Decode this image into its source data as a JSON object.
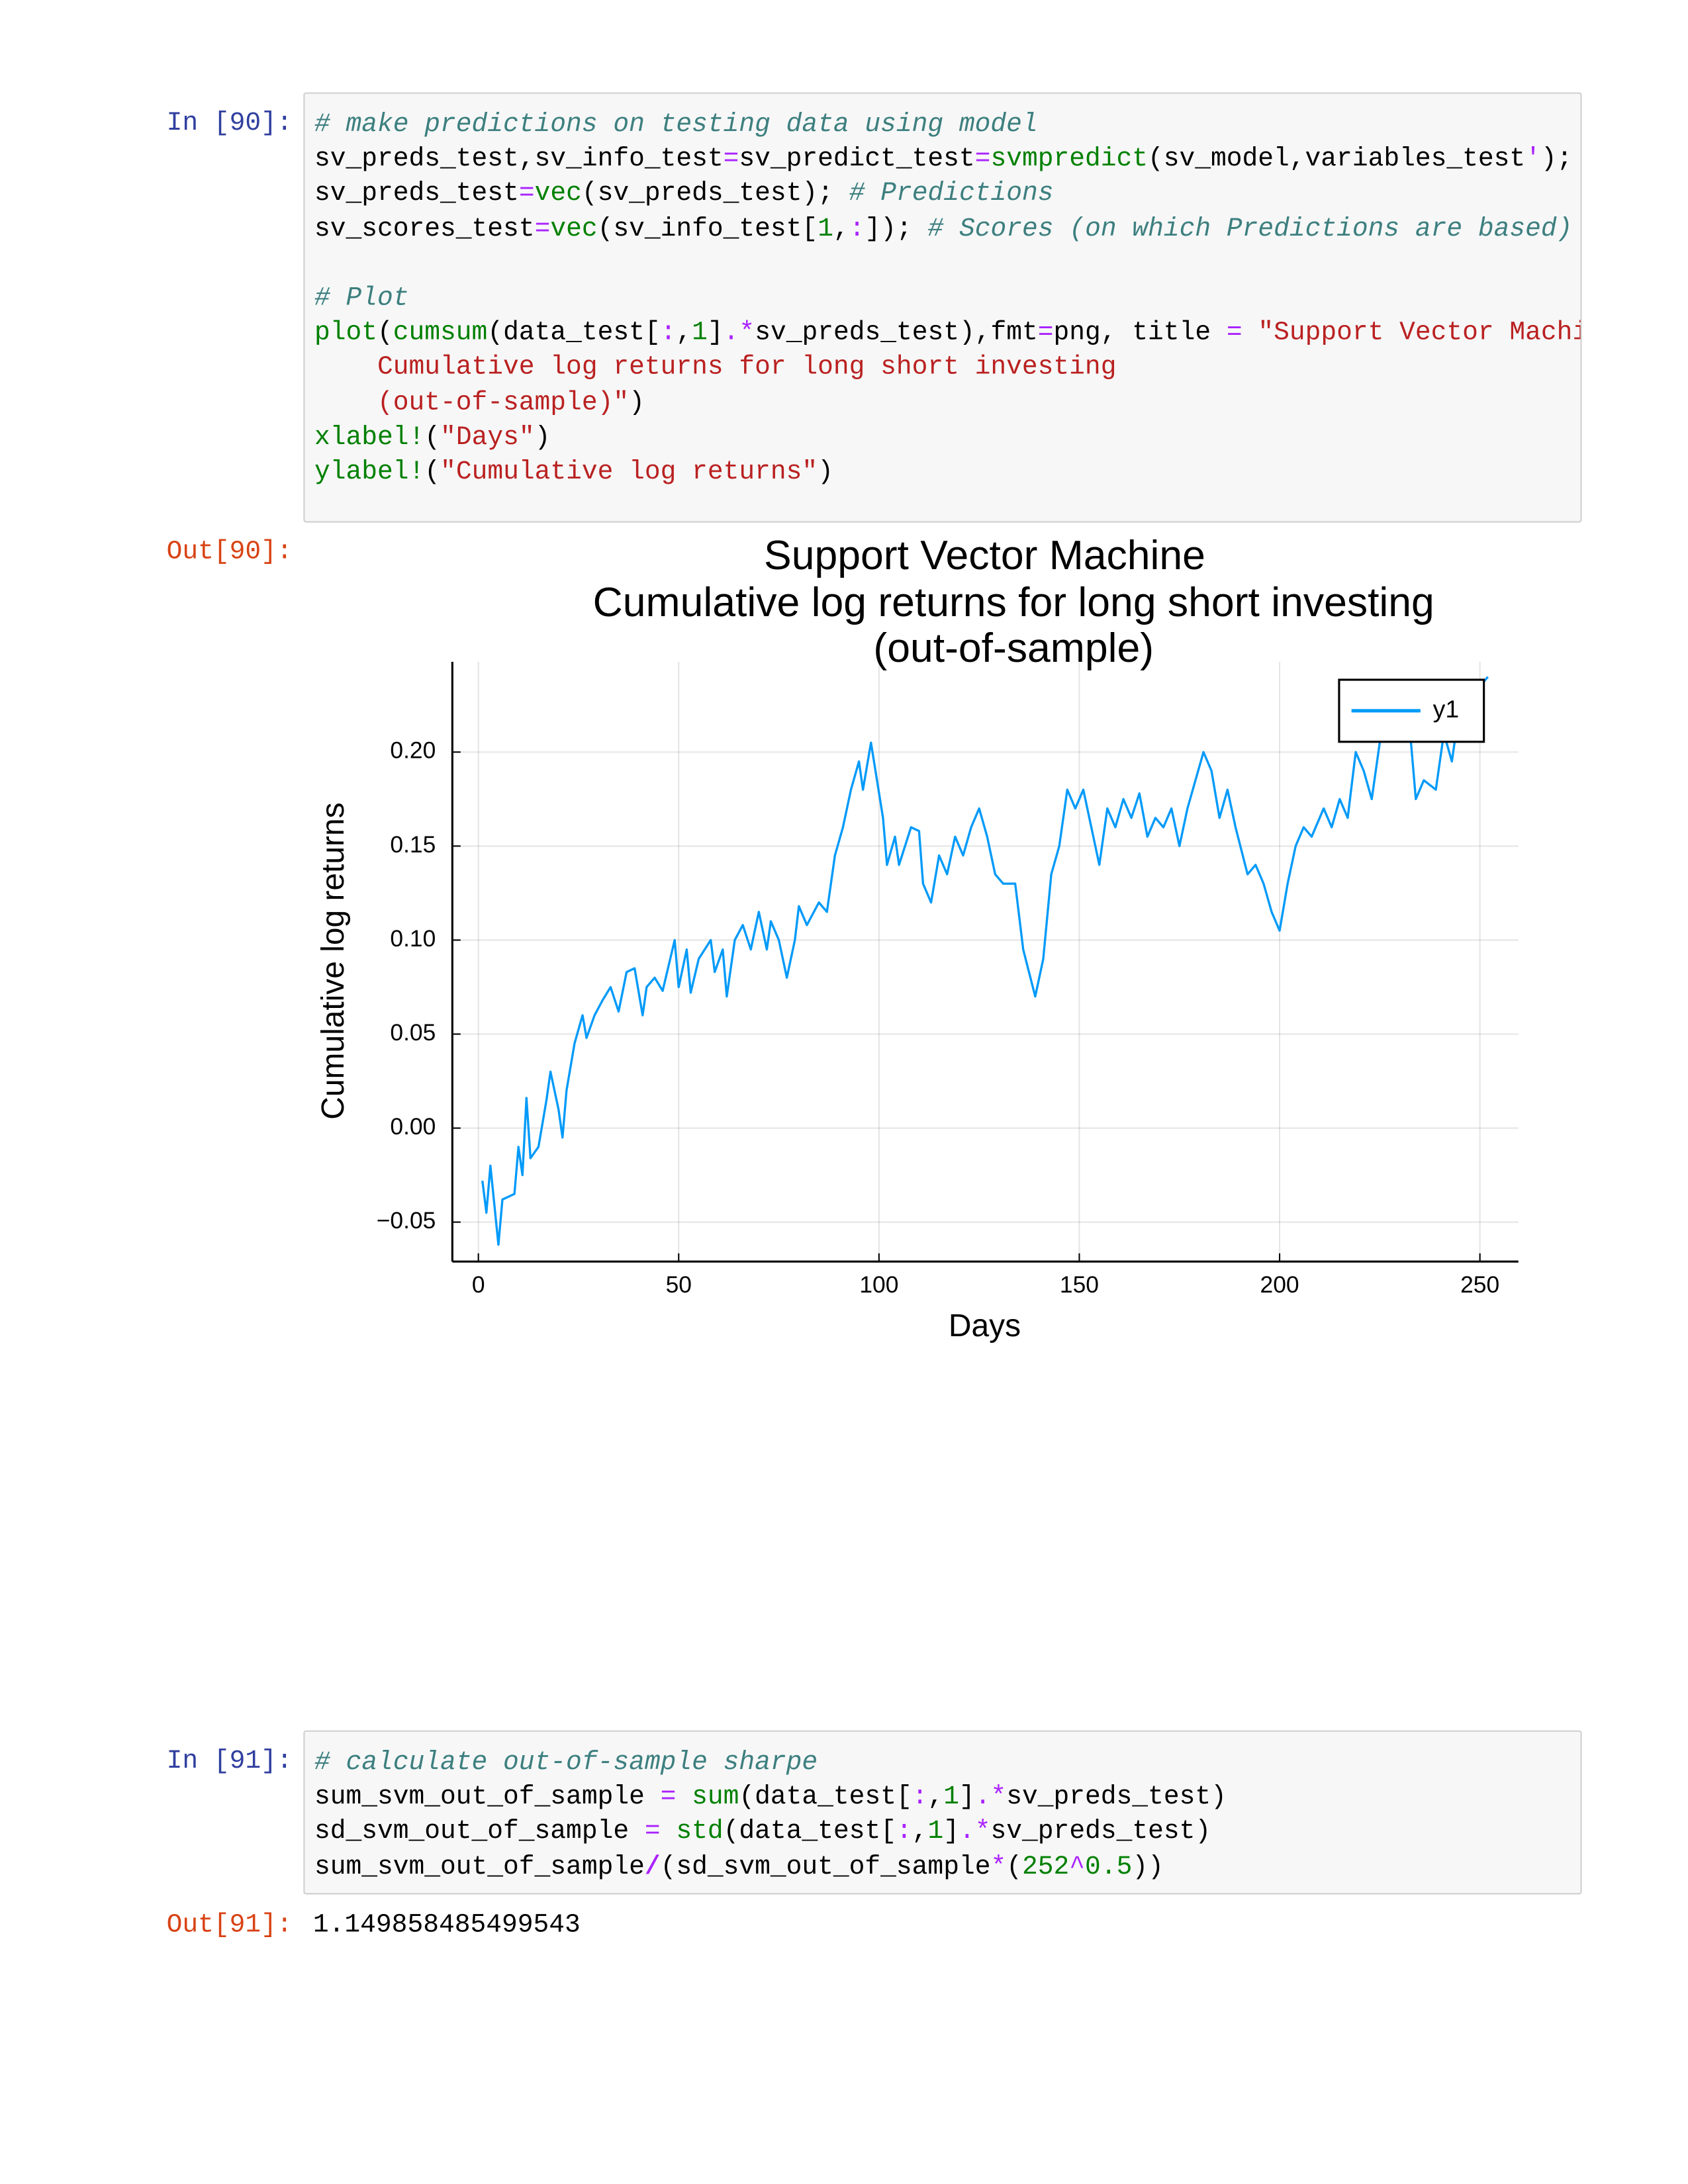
{
  "cells": [
    {
      "input_prompt": "In [90]:",
      "output_prompt": "Out[90]:",
      "code": [
        [
          [
            "# make predictions on testing data using model",
            "#3d7f7f",
            "italic"
          ]
        ],
        [
          [
            "sv_preds_test,sv_info_test",
            "#000000"
          ],
          [
            "=",
            "#aa22ff"
          ],
          [
            "sv_predict_test",
            "#000000"
          ],
          [
            "=",
            "#aa22ff"
          ],
          [
            "svmpredict",
            "#008000"
          ],
          [
            "(sv_model,variables_test",
            "#000000"
          ],
          [
            "'",
            "#aa22ff"
          ],
          [
            ");",
            "#000000"
          ]
        ],
        [
          [
            "sv_preds_test",
            "#000000"
          ],
          [
            "=",
            "#aa22ff"
          ],
          [
            "vec",
            "#008000"
          ],
          [
            "(sv_preds_test); ",
            "#000000"
          ],
          [
            "# Predictions",
            "#3d7f7f",
            "italic"
          ]
        ],
        [
          [
            "sv_scores_test",
            "#000000"
          ],
          [
            "=",
            "#aa22ff"
          ],
          [
            "vec",
            "#008000"
          ],
          [
            "(sv_info_test[",
            "#000000"
          ],
          [
            "1",
            "#008000"
          ],
          [
            ",",
            "#000000"
          ],
          [
            ":",
            "#aa22ff"
          ],
          [
            "]); ",
            "#000000"
          ],
          [
            "# Scores (on which Predictions are based)",
            "#3d7f7f",
            "italic"
          ]
        ],
        [],
        [
          [
            "# Plot",
            "#3d7f7f",
            "italic"
          ]
        ],
        [
          [
            "plot",
            "#008000"
          ],
          [
            "(",
            "#000000"
          ],
          [
            "cumsum",
            "#008000"
          ],
          [
            "(data_test[",
            "#000000"
          ],
          [
            ":",
            "#aa22ff"
          ],
          [
            ",",
            "#000000"
          ],
          [
            "1",
            "#008000"
          ],
          [
            "]",
            "#000000"
          ],
          [
            ".*",
            "#aa22ff"
          ],
          [
            "sv_preds_test),fmt",
            "#000000"
          ],
          [
            "=",
            "#aa22ff"
          ],
          [
            "png, title ",
            "#000000"
          ],
          [
            "=",
            "#aa22ff"
          ],
          [
            " ",
            "#000000"
          ],
          [
            "\"Support Vector Machine",
            "#ba2121"
          ]
        ],
        [
          [
            "    Cumulative log returns for long short investing",
            "#ba2121"
          ]
        ],
        [
          [
            "    (out-of-sample)\"",
            "#ba2121"
          ],
          [
            ")",
            "#000000"
          ]
        ],
        [
          [
            "xlabel!",
            "#008000"
          ],
          [
            "(",
            "#000000"
          ],
          [
            "\"Days\"",
            "#ba2121"
          ],
          [
            ")",
            "#000000"
          ]
        ],
        [
          [
            "ylabel!",
            "#008000"
          ],
          [
            "(",
            "#000000"
          ],
          [
            "\"Cumulative log returns\"",
            "#ba2121"
          ],
          [
            ")",
            "#000000"
          ]
        ]
      ]
    },
    {
      "input_prompt": "In [91]:",
      "output_prompt": "Out[91]:",
      "output_text": "1.149858485499543",
      "code": [
        [
          [
            "# calculate out-of-sample sharpe",
            "#3d7f7f",
            "italic"
          ]
        ],
        [
          [
            "sum_svm_out_of_sample ",
            "#000000"
          ],
          [
            "=",
            "#aa22ff"
          ],
          [
            " ",
            "#000000"
          ],
          [
            "sum",
            "#008000"
          ],
          [
            "(data_test[",
            "#000000"
          ],
          [
            ":",
            "#aa22ff"
          ],
          [
            ",",
            "#000000"
          ],
          [
            "1",
            "#008000"
          ],
          [
            "]",
            "#000000"
          ],
          [
            ".*",
            "#aa22ff"
          ],
          [
            "sv_preds_test)",
            "#000000"
          ]
        ],
        [
          [
            "sd_svm_out_of_sample ",
            "#000000"
          ],
          [
            "=",
            "#aa22ff"
          ],
          [
            " ",
            "#000000"
          ],
          [
            "std",
            "#008000"
          ],
          [
            "(data_test[",
            "#000000"
          ],
          [
            ":",
            "#aa22ff"
          ],
          [
            ",",
            "#000000"
          ],
          [
            "1",
            "#008000"
          ],
          [
            "]",
            "#000000"
          ],
          [
            ".*",
            "#aa22ff"
          ],
          [
            "sv_preds_test)",
            "#000000"
          ]
        ],
        [
          [
            "sum_svm_out_of_sample",
            "#000000"
          ],
          [
            "/",
            "#aa22ff"
          ],
          [
            "(sd_svm_out_of_sample",
            "#000000"
          ],
          [
            "*",
            "#aa22ff"
          ],
          [
            "(",
            "#000000"
          ],
          [
            "252",
            "#008000"
          ],
          [
            "^",
            "#aa22ff"
          ],
          [
            "0.5",
            "#008000"
          ],
          [
            "))",
            "#000000"
          ]
        ]
      ]
    }
  ],
  "chart_data": {
    "type": "line",
    "title": [
      "Support Vector Machine",
      "Cumulative log returns for long short investing",
      "(out-of-sample)"
    ],
    "xlabel": "Days",
    "ylabel": "Cumulative log returns",
    "xlim": [
      -6.5,
      259.6
    ],
    "ylim": [
      -0.071,
      0.248
    ],
    "xticks": [
      0,
      50,
      100,
      150,
      200,
      250
    ],
    "yticks": [
      {
        "value": -0.05,
        "label": "−0.05"
      },
      {
        "value": 0,
        "label": "0.00"
      },
      0.05,
      {
        "value": 0.1,
        "label": "0.10"
      },
      0.15,
      {
        "value": 0.2,
        "label": "0.20"
      }
    ],
    "grid": true,
    "legend": "top-right",
    "x": [
      1,
      2,
      3,
      5,
      6,
      9,
      10,
      11,
      12,
      13,
      15,
      17,
      18,
      20,
      21,
      22,
      24,
      26,
      27,
      29,
      31,
      33,
      35,
      37,
      39,
      41,
      42,
      44,
      46,
      49,
      50,
      52,
      53,
      55,
      58,
      59,
      61,
      62,
      64,
      66,
      68,
      70,
      72,
      73,
      75,
      77,
      79,
      80,
      82,
      85,
      87,
      89,
      91,
      93,
      95,
      96,
      98,
      101,
      102,
      104,
      105,
      108,
      110,
      111,
      113,
      115,
      117,
      119,
      121,
      123,
      125,
      127,
      129,
      131,
      134,
      136,
      139,
      141,
      143,
      145,
      147,
      149,
      151,
      153,
      155,
      157,
      159,
      161,
      163,
      165,
      167,
      169,
      171,
      173,
      175,
      177,
      179,
      181,
      183,
      185,
      187,
      189,
      192,
      194,
      196,
      198,
      200,
      202,
      204,
      206,
      208,
      211,
      213,
      215,
      217,
      219,
      221,
      223,
      225,
      227,
      229,
      232,
      234,
      236,
      239,
      241,
      243,
      245,
      248,
      250,
      252
    ],
    "series": [
      {
        "name": "y1",
        "color": "#009af9",
        "values": [
          -0.028,
          -0.045,
          -0.02,
          -0.062,
          -0.038,
          -0.035,
          -0.01,
          -0.025,
          0.016,
          -0.016,
          -0.01,
          0.015,
          0.03,
          0.01,
          -0.005,
          0.02,
          0.045,
          0.06,
          0.048,
          0.06,
          0.068,
          0.075,
          0.062,
          0.083,
          0.085,
          0.06,
          0.075,
          0.08,
          0.073,
          0.1,
          0.075,
          0.095,
          0.072,
          0.09,
          0.1,
          0.083,
          0.095,
          0.07,
          0.1,
          0.108,
          0.095,
          0.115,
          0.095,
          0.11,
          0.1,
          0.08,
          0.1,
          0.118,
          0.108,
          0.12,
          0.115,
          0.145,
          0.16,
          0.18,
          0.195,
          0.18,
          0.205,
          0.165,
          0.14,
          0.155,
          0.14,
          0.16,
          0.158,
          0.13,
          0.12,
          0.145,
          0.135,
          0.155,
          0.145,
          0.16,
          0.17,
          0.155,
          0.135,
          0.13,
          0.13,
          0.095,
          0.07,
          0.09,
          0.135,
          0.15,
          0.18,
          0.17,
          0.18,
          0.16,
          0.14,
          0.17,
          0.16,
          0.175,
          0.165,
          0.178,
          0.155,
          0.165,
          0.16,
          0.17,
          0.15,
          0.17,
          0.185,
          0.2,
          0.19,
          0.165,
          0.18,
          0.16,
          0.135,
          0.14,
          0.13,
          0.115,
          0.105,
          0.13,
          0.15,
          0.16,
          0.155,
          0.17,
          0.16,
          0.175,
          0.165,
          0.2,
          0.19,
          0.175,
          0.205,
          0.22,
          0.21,
          0.225,
          0.175,
          0.185,
          0.18,
          0.21,
          0.195,
          0.225,
          0.23,
          0.235,
          0.24
        ]
      }
    ]
  }
}
